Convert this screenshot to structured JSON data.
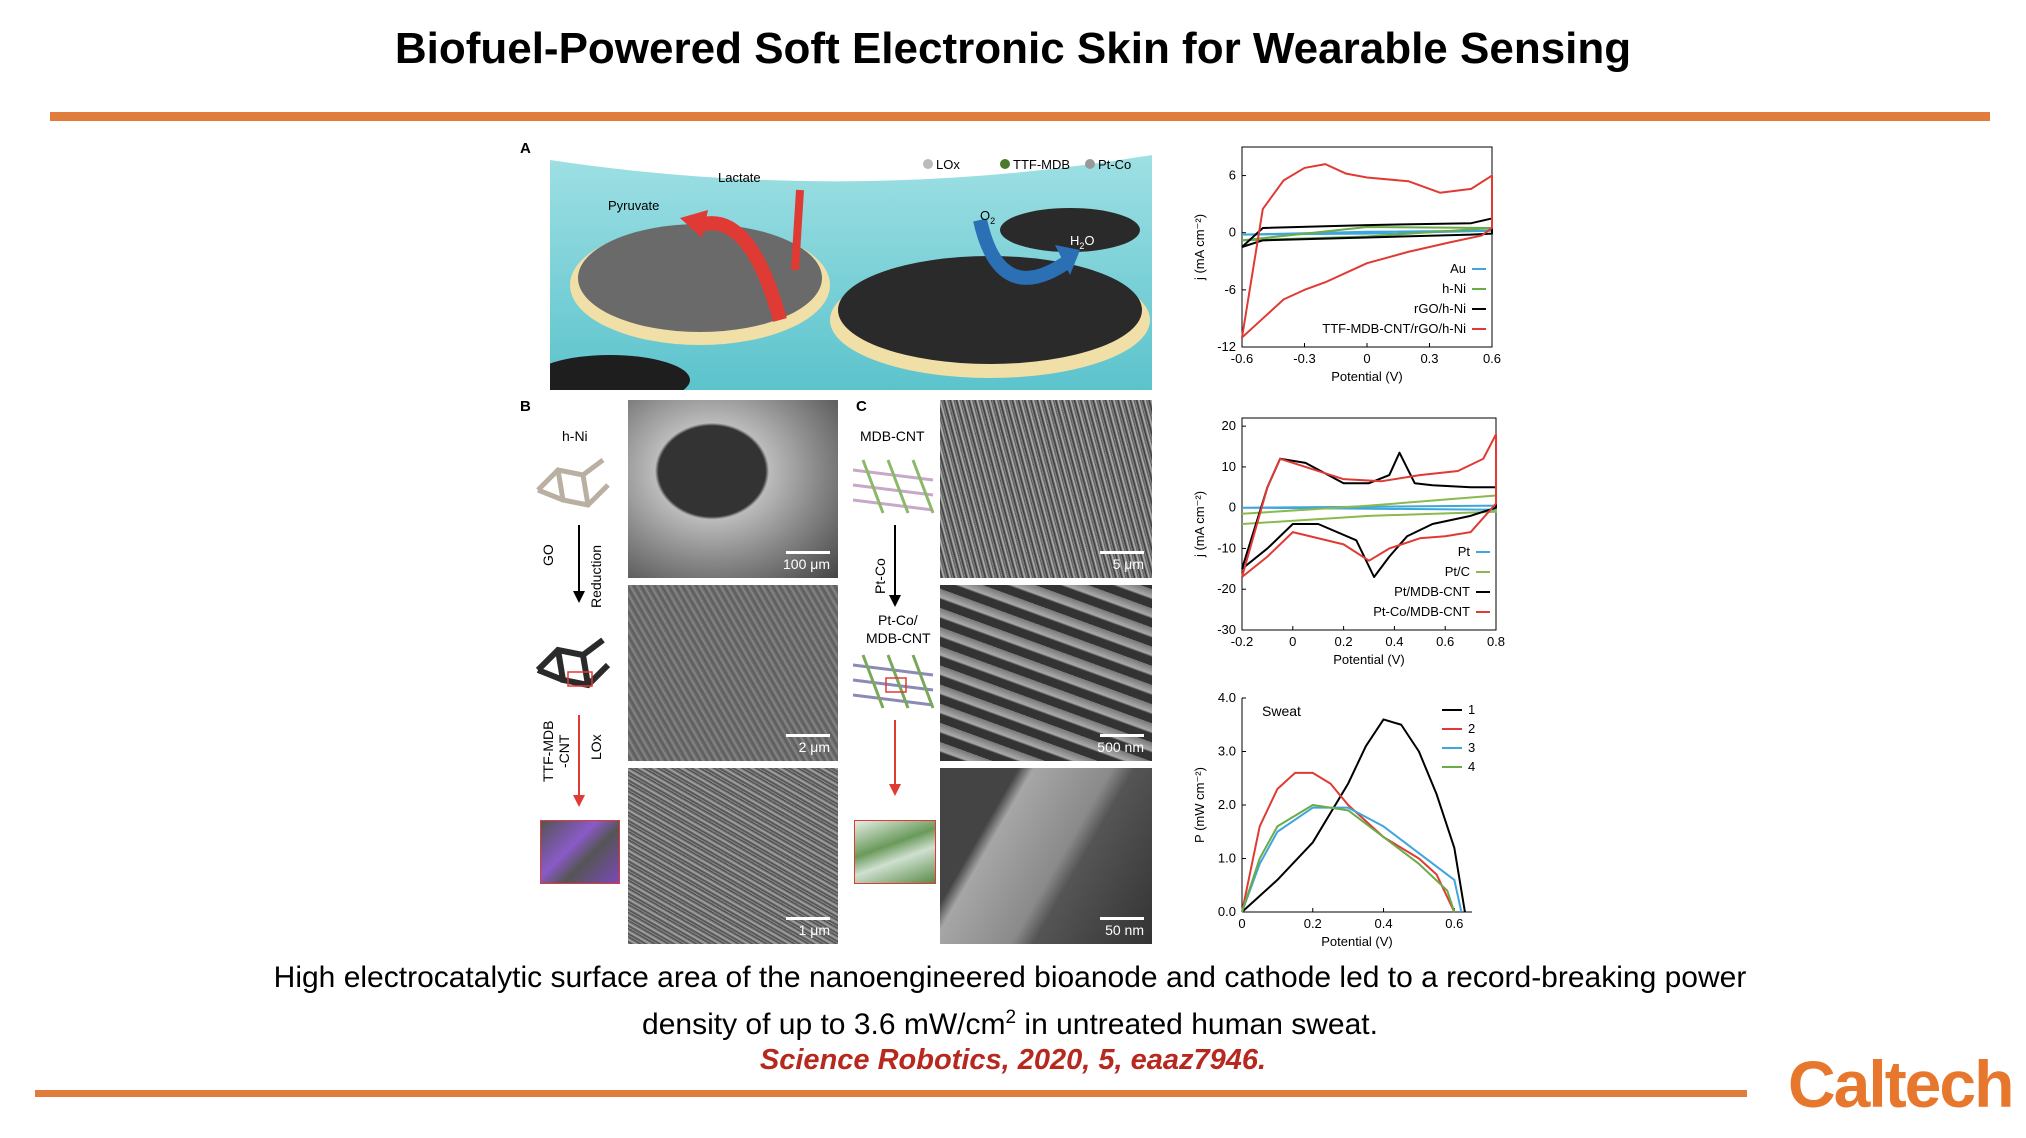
{
  "title": "Biofuel-Powered Soft Electronic Skin for Wearable Sensing",
  "panel_a": {
    "label": "A",
    "legend": [
      "LOx",
      "TTF-MDB",
      "Pt-Co"
    ],
    "lactate": "Lactate",
    "pyruvate": "Pyruvate",
    "o2": "O",
    "o2_sub": "2",
    "h2o": "H",
    "h2o_sub": "2",
    "h2o_tail": "O"
  },
  "panel_b": {
    "label": "B",
    "start": "h-Ni",
    "step1_left": "GO",
    "step1_right": "Reduction",
    "step2_a": "TTF-MDB",
    "step2_b": "-CNT",
    "step2_c": "LOx",
    "scales": [
      "100 μm",
      "2 μm",
      "1 μm"
    ]
  },
  "panel_c": {
    "label": "C",
    "start": "MDB-CNT",
    "step1": "Pt-Co",
    "mid_a": "Pt-Co/",
    "mid_b": "MDB-CNT",
    "scales": [
      "5 μm",
      "500 nm",
      "50 nm"
    ]
  },
  "chart_data": [
    {
      "type": "line",
      "xlabel": "Potential (V)",
      "ylabel": "j (mA cm⁻²)",
      "xlim": [
        -0.6,
        0.6
      ],
      "ylim": [
        -12,
        9
      ],
      "xticks": [
        "-0.6",
        "-0.3",
        "0",
        "0.3",
        "0.6"
      ],
      "yticks": [
        "6",
        "0",
        "-6",
        "-12"
      ],
      "legend": "bottom-right",
      "series": [
        {
          "name": "Au",
          "color": "#3ea6dc",
          "x": [
            -0.6,
            0.0,
            0.6,
            0.0,
            -0.6
          ],
          "y": [
            -0.2,
            -0.1,
            0.2,
            0.1,
            -0.2
          ]
        },
        {
          "name": "h-Ni",
          "color": "#6aab4a",
          "x": [
            -0.6,
            0.0,
            0.6,
            0.0,
            -0.6
          ],
          "y": [
            -0.8,
            -0.4,
            0.5,
            0.6,
            -0.8
          ]
        },
        {
          "name": "rGO/h-Ni",
          "color": "#000000",
          "x": [
            -0.6,
            -0.5,
            0.0,
            0.5,
            0.6,
            0.6,
            0.5,
            0.0,
            -0.5,
            -0.6
          ],
          "y": [
            -1.5,
            0.5,
            0.8,
            1.0,
            1.5,
            -0.1,
            -0.2,
            -0.5,
            -0.8,
            -1.5
          ]
        },
        {
          "name": "TTF-MDB-CNT/rGO/h-Ni",
          "color": "#e03a34",
          "x": [
            -0.6,
            -0.5,
            -0.4,
            -0.3,
            -0.2,
            -0.1,
            0.0,
            0.2,
            0.35,
            0.5,
            0.6,
            0.6,
            0.55,
            0.4,
            0.2,
            0.0,
            -0.2,
            -0.3,
            -0.4,
            -0.5,
            -0.6
          ],
          "y": [
            -11,
            2.5,
            5.5,
            6.8,
            7.2,
            6.2,
            5.8,
            5.4,
            4.2,
            4.6,
            6.0,
            0.5,
            -0.3,
            -1.0,
            -2.0,
            -3.2,
            -5.2,
            -6.0,
            -7.0,
            -9.0,
            -11
          ]
        }
      ]
    },
    {
      "type": "line",
      "xlabel": "Potential (V)",
      "ylabel": "j (mA cm⁻²)",
      "xlim": [
        -0.2,
        0.8
      ],
      "ylim": [
        -30,
        22
      ],
      "xticks": [
        "-0.2",
        "0",
        "0.2",
        "0.4",
        "0.6",
        "0.8"
      ],
      "yticks": [
        "20",
        "10",
        "0",
        "-10",
        "-20",
        "-30"
      ],
      "legend": "bottom-right",
      "series": [
        {
          "name": "Pt",
          "color": "#3ea6dc",
          "x": [
            -0.2,
            0.8,
            0.8,
            -0.2
          ],
          "y": [
            0,
            0.5,
            -0.5,
            0
          ]
        },
        {
          "name": "Pt/C",
          "color": "#8ab94c",
          "x": [
            -0.2,
            0.3,
            0.8,
            0.8,
            0.3,
            -0.2
          ],
          "y": [
            -1.5,
            0.5,
            3,
            -1,
            -2,
            -4
          ]
        },
        {
          "name": "Pt/MDB-CNT",
          "color": "#000000",
          "x": [
            -0.2,
            -0.1,
            -0.05,
            0.05,
            0.2,
            0.3,
            0.38,
            0.42,
            0.48,
            0.55,
            0.7,
            0.8,
            0.8,
            0.7,
            0.55,
            0.45,
            0.38,
            0.32,
            0.25,
            0.1,
            0.0,
            -0.1,
            -0.2
          ],
          "y": [
            -15,
            5,
            12,
            11,
            6,
            6,
            8,
            13.5,
            6,
            5.5,
            5,
            5,
            0,
            -2,
            -4,
            -7,
            -12,
            -17,
            -8,
            -4,
            -4,
            -10,
            -15
          ]
        },
        {
          "name": "Pt-Co/MDB-CNT",
          "color": "#e03a34",
          "x": [
            -0.2,
            -0.1,
            -0.05,
            0.05,
            0.2,
            0.35,
            0.5,
            0.65,
            0.75,
            0.8,
            0.8,
            0.7,
            0.6,
            0.5,
            0.38,
            0.3,
            0.2,
            0.0,
            -0.1,
            -0.2
          ],
          "y": [
            -17,
            5,
            12,
            10,
            7,
            6.5,
            8,
            9,
            12,
            18,
            1,
            -6,
            -7,
            -7.5,
            -10,
            -13,
            -9,
            -6,
            -12,
            -17
          ]
        }
      ]
    },
    {
      "type": "line",
      "xlabel": "Potential (V)",
      "ylabel": "P (mW cm⁻²)",
      "xlim": [
        0,
        0.65
      ],
      "ylim": [
        0,
        4.0
      ],
      "xticks": [
        "0",
        "0.2",
        "0.4",
        "0.6"
      ],
      "yticks": [
        "4.0",
        "3.0",
        "2.0",
        "1.0",
        "0.0"
      ],
      "annotation": "Sweat",
      "legend": "top-right",
      "series": [
        {
          "name": "1",
          "color": "#000000",
          "x": [
            0.0,
            0.1,
            0.2,
            0.3,
            0.35,
            0.4,
            0.45,
            0.5,
            0.55,
            0.6,
            0.63
          ],
          "y": [
            0.0,
            0.6,
            1.3,
            2.4,
            3.1,
            3.6,
            3.5,
            3.0,
            2.2,
            1.2,
            0.0
          ]
        },
        {
          "name": "2",
          "color": "#e03a34",
          "x": [
            0.0,
            0.05,
            0.1,
            0.15,
            0.2,
            0.25,
            0.3,
            0.4,
            0.5,
            0.55,
            0.6
          ],
          "y": [
            0.0,
            1.6,
            2.3,
            2.6,
            2.6,
            2.4,
            2.0,
            1.4,
            1.0,
            0.7,
            0.0
          ]
        },
        {
          "name": "3",
          "color": "#3ea6dc",
          "x": [
            0.0,
            0.05,
            0.1,
            0.2,
            0.3,
            0.4,
            0.5,
            0.6,
            0.62
          ],
          "y": [
            0.0,
            0.9,
            1.5,
            1.95,
            1.95,
            1.6,
            1.1,
            0.6,
            0.0
          ]
        },
        {
          "name": "4",
          "color": "#6aab4a",
          "x": [
            0.0,
            0.05,
            0.1,
            0.2,
            0.3,
            0.4,
            0.5,
            0.58,
            0.6
          ],
          "y": [
            0.0,
            1.0,
            1.6,
            2.0,
            1.9,
            1.4,
            0.9,
            0.4,
            0.0
          ]
        }
      ]
    }
  ],
  "caption_line1": "High electrocatalytic surface area of the nanoengineered bioanode and cathode led to a record-breaking power",
  "caption_line2_pre": "density of up to 3.6 mW/cm",
  "caption_line2_sup": "2",
  "caption_line2_post": " in untreated human sweat.",
  "citation": "Science Robotics, 2020, 5, eaaz7946.",
  "logo": "Caltech"
}
